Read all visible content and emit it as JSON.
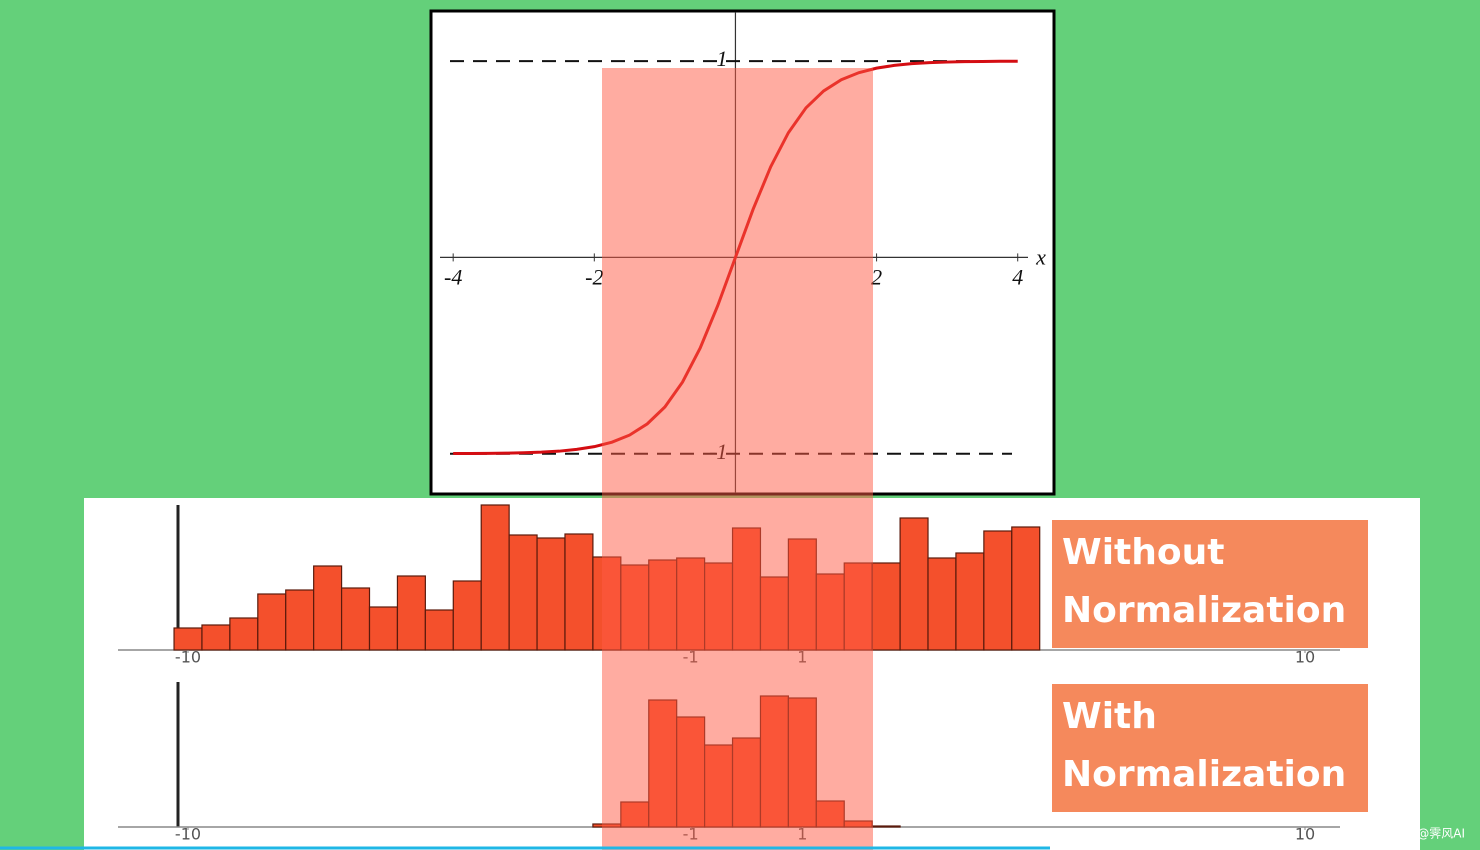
{
  "chart_data": [
    {
      "type": "line",
      "x": [
        -4,
        -3.75,
        -3.5,
        -3.25,
        -3,
        -2.75,
        -2.5,
        -2.25,
        -2,
        -1.75,
        -1.5,
        -1.25,
        -1,
        -0.75,
        -0.5,
        -0.25,
        0,
        0.25,
        0.5,
        0.75,
        1,
        1.25,
        1.5,
        1.75,
        2,
        2.25,
        2.5,
        2.75,
        3,
        3.25,
        3.5,
        3.75,
        4
      ],
      "values": [
        -0.999,
        -0.999,
        -0.998,
        -0.997,
        -0.995,
        -0.992,
        -0.987,
        -0.978,
        -0.964,
        -0.941,
        -0.905,
        -0.848,
        -0.762,
        -0.635,
        -0.462,
        -0.245,
        0,
        0.245,
        0.462,
        0.635,
        0.762,
        0.848,
        0.905,
        0.941,
        0.964,
        0.978,
        0.987,
        0.992,
        0.995,
        0.997,
        0.998,
        0.999,
        0.999
      ],
      "color": "#d40d12",
      "xlim": [
        -4.3,
        4.5
      ],
      "ylim": [
        -1.2,
        1.25
      ],
      "xticks": [
        -4,
        -2,
        2,
        4
      ],
      "yticks": [
        -1,
        1
      ],
      "x_label": "x"
    },
    {
      "type": "histogram",
      "bins": [
        -10.25,
        -9.75,
        -9.25,
        -8.75,
        -8.25,
        -7.75,
        -7.25,
        -6.75,
        -6.25,
        -5.75,
        -5.25,
        -4.75,
        -4.25,
        -3.75,
        -3.25,
        -2.75,
        -2.25,
        -1.75,
        -1.25,
        -0.75,
        -0.25,
        0.25,
        0.75,
        1.25,
        1.75,
        2.25,
        2.75,
        3.25,
        3.75,
        4.25,
        4.75,
        5.25
      ],
      "values": [
        22,
        25,
        32,
        56,
        60,
        84,
        62,
        43,
        74,
        40,
        69,
        145,
        115,
        112,
        116,
        93,
        85,
        90,
        92,
        87,
        122,
        73,
        111,
        76,
        87,
        87,
        132,
        92,
        97,
        119,
        123
      ],
      "color": "#f4502c",
      "xlim": [
        -10,
        10
      ],
      "ylim": [
        0,
        150
      ],
      "xticks": [
        -10,
        -1,
        1,
        10
      ],
      "annotation": "Without Normalization"
    },
    {
      "type": "histogram",
      "bins": [
        -2.75,
        -2.25,
        -1.75,
        -1.25,
        -0.75,
        -0.25,
        0.25,
        0.75,
        1.25,
        1.75,
        2.25,
        2.75
      ],
      "values": [
        3,
        25,
        127,
        110,
        82,
        89,
        131,
        129,
        26,
        6,
        1
      ],
      "color": "#f4502c",
      "xlim": [
        -10,
        10
      ],
      "ylim": [
        0,
        150
      ],
      "xticks": [
        -10,
        -1,
        1,
        10
      ],
      "annotation": "With Normalization"
    }
  ],
  "watermark": "CSDN @霁风AI"
}
